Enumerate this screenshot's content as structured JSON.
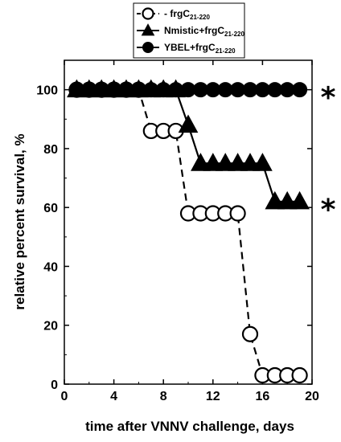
{
  "chart_data": {
    "type": "line",
    "xlabel": "time after VNNV challenge, days",
    "ylabel": "relative percent survival, %",
    "xlim": [
      0,
      20
    ],
    "ylim": [
      0,
      110
    ],
    "xticks": [
      0,
      4,
      8,
      12,
      16,
      20
    ],
    "yticks": [
      0,
      20,
      40,
      60,
      80,
      100
    ],
    "legend_position": "top",
    "series": [
      {
        "name_main": "- frgC",
        "name_sub": "21-220",
        "marker": "open-circle",
        "line": "dashed",
        "color": "#000000",
        "points": [
          [
            1,
            100
          ],
          [
            2,
            100
          ],
          [
            3,
            100
          ],
          [
            4,
            100
          ],
          [
            5,
            100
          ],
          [
            6,
            100
          ],
          [
            7,
            86
          ],
          [
            8,
            86
          ],
          [
            9,
            86
          ],
          [
            10,
            58
          ],
          [
            11,
            58
          ],
          [
            12,
            58
          ],
          [
            13,
            58
          ],
          [
            14,
            58
          ],
          [
            15,
            17
          ],
          [
            16,
            3
          ],
          [
            17,
            3
          ],
          [
            18,
            3
          ],
          [
            19,
            3
          ]
        ]
      },
      {
        "name_main": "Nmistic+frgC",
        "name_sub": "21-220",
        "marker": "triangle",
        "line": "solid",
        "color": "#000000",
        "points": [
          [
            1,
            100
          ],
          [
            2,
            100
          ],
          [
            3,
            100
          ],
          [
            4,
            100
          ],
          [
            5,
            100
          ],
          [
            6,
            100
          ],
          [
            7,
            100
          ],
          [
            8,
            100
          ],
          [
            9,
            100
          ],
          [
            10,
            88
          ],
          [
            11,
            75
          ],
          [
            12,
            75
          ],
          [
            13,
            75
          ],
          [
            14,
            75
          ],
          [
            15,
            75
          ],
          [
            16,
            75
          ],
          [
            17,
            62
          ],
          [
            18,
            62
          ],
          [
            19,
            62
          ]
        ]
      },
      {
        "name_main": "YBEL+frgC",
        "name_sub": "21-220",
        "marker": "filled-circle",
        "line": "solid",
        "color": "#000000",
        "points": [
          [
            1,
            100
          ],
          [
            2,
            100
          ],
          [
            3,
            100
          ],
          [
            4,
            100
          ],
          [
            5,
            100
          ],
          [
            6,
            100
          ],
          [
            7,
            100
          ],
          [
            8,
            100
          ],
          [
            9,
            100
          ],
          [
            10,
            100
          ],
          [
            11,
            100
          ],
          [
            12,
            100
          ],
          [
            13,
            100
          ],
          [
            14,
            100
          ],
          [
            15,
            100
          ],
          [
            16,
            100
          ],
          [
            17,
            100
          ],
          [
            18,
            100
          ],
          [
            19,
            100
          ]
        ]
      }
    ],
    "annotations": [
      {
        "text": "*",
        "y": 100
      },
      {
        "text": "*",
        "y": 62
      }
    ]
  }
}
